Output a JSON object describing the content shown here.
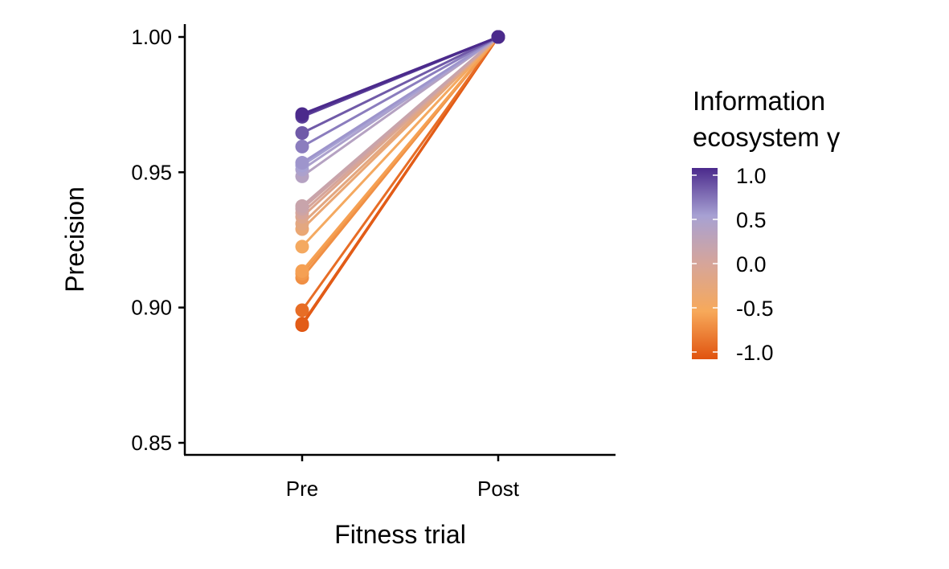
{
  "chart_data": {
    "type": "line",
    "title": "",
    "xlabel": "Fitness trial",
    "ylabel": "Precision",
    "categories": [
      "Pre",
      "Post"
    ],
    "ylim": [
      0.845,
      1.005
    ],
    "yticks": [
      0.85,
      0.9,
      0.95,
      1.0
    ],
    "ytick_labels": [
      "0.85",
      "0.90",
      "0.95",
      "1.00"
    ],
    "grid": false,
    "legend": {
      "title_line1": "Information",
      "title_line2": "ecosystem γ",
      "variable": "gamma",
      "range": [
        -1.0,
        1.0
      ],
      "ticks": [
        1.0,
        0.5,
        0.0,
        -0.5,
        -1.0
      ],
      "tick_labels": [
        "1.0",
        "0.5",
        "0.0",
        "-0.5",
        "-1.0"
      ],
      "placement": "right",
      "colors": {
        "high": "#4b2a8c",
        "mid_high": "#a7a1d3",
        "mid": "#d6a59a",
        "mid_low": "#f7a95a",
        "low": "#e0530f"
      }
    },
    "series": [
      {
        "gamma": 1.0,
        "values": [
          0.9715,
          1.0
        ]
      },
      {
        "gamma": 0.95,
        "values": [
          0.971,
          1.0
        ]
      },
      {
        "gamma": 0.9,
        "values": [
          0.9705,
          1.0
        ]
      },
      {
        "gamma": 0.8,
        "values": [
          0.9645,
          1.0
        ]
      },
      {
        "gamma": 0.65,
        "values": [
          0.9595,
          1.0
        ]
      },
      {
        "gamma": 0.55,
        "values": [
          0.9535,
          1.0
        ]
      },
      {
        "gamma": 0.5,
        "values": [
          0.9525,
          1.0
        ]
      },
      {
        "gamma": 0.45,
        "values": [
          0.951,
          1.0
        ]
      },
      {
        "gamma": 0.35,
        "values": [
          0.9485,
          1.0
        ]
      },
      {
        "gamma": 0.15,
        "values": [
          0.9375,
          1.0
        ]
      },
      {
        "gamma": 0.1,
        "values": [
          0.9365,
          1.0
        ]
      },
      {
        "gamma": 0.0,
        "values": [
          0.935,
          1.0
        ]
      },
      {
        "gamma": -0.1,
        "values": [
          0.9335,
          1.0
        ]
      },
      {
        "gamma": -0.2,
        "values": [
          0.931,
          1.0
        ]
      },
      {
        "gamma": -0.3,
        "values": [
          0.929,
          1.0
        ]
      },
      {
        "gamma": -0.45,
        "values": [
          0.9225,
          1.0
        ]
      },
      {
        "gamma": -0.55,
        "values": [
          0.9135,
          1.0
        ]
      },
      {
        "gamma": -0.6,
        "values": [
          0.9125,
          1.0
        ]
      },
      {
        "gamma": -0.65,
        "values": [
          0.911,
          1.0
        ]
      },
      {
        "gamma": -0.85,
        "values": [
          0.899,
          1.0
        ]
      },
      {
        "gamma": -0.95,
        "values": [
          0.894,
          1.0
        ]
      },
      {
        "gamma": -1.0,
        "values": [
          0.8935,
          1.0
        ]
      }
    ]
  }
}
